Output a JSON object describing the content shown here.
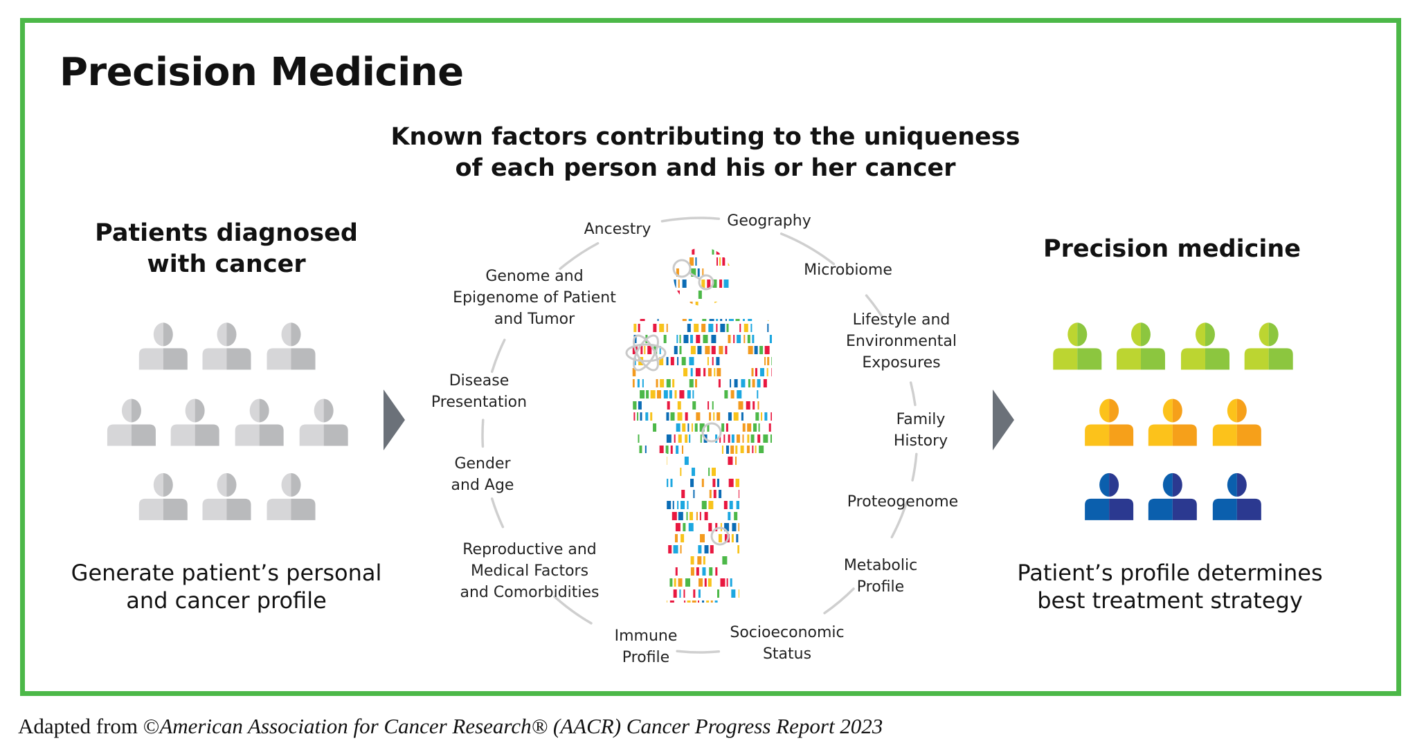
{
  "title": "Precision Medicine",
  "subtitle": [
    "Known factors contributing to the uniqueness",
    "of each person and his or her cancer"
  ],
  "left": {
    "heading": [
      "Patients diagnosed",
      "with cancer"
    ],
    "caption": [
      "Generate patient’s personal",
      "and cancer profile"
    ],
    "icon_colors": {
      "light": "#d6d6d8",
      "dark": "#b9babc"
    }
  },
  "right": {
    "heading": "Precision medicine",
    "caption": [
      "Patient’s profile determines",
      "best treatment strategy"
    ],
    "groups": [
      {
        "light": "#bcd531",
        "dark": "#8cc63f"
      },
      {
        "light": "#fcc21b",
        "dark": "#f6a01a"
      },
      {
        "light": "#0b5fad",
        "dark": "#2b3990"
      }
    ]
  },
  "arrow_color": "#6b7179",
  "frame_color": "#4cb848",
  "factors": {
    "ancestry": "Ancestry",
    "geography": "Geography",
    "microbiome": "Microbiome",
    "lifestyle": [
      "Lifestyle and",
      "Environmental",
      "Exposures"
    ],
    "family": [
      "Family",
      "History"
    ],
    "proteogenome": "Proteogenome",
    "metabolic": [
      "Metabolic",
      "Profile"
    ],
    "socioeconomic": [
      "Socioeconomic",
      "Status"
    ],
    "immune": [
      "Immune",
      "Profile"
    ],
    "reproductive": [
      "Reproductive and",
      "Medical Factors",
      "and Comorbidities"
    ],
    "gender": [
      "Gender",
      "and Age"
    ],
    "disease": [
      "Disease",
      "Presentation"
    ],
    "genome": [
      "Genome and",
      "Epigenome of Patient",
      "and Tumor"
    ]
  },
  "figure_bar_colors": [
    "#e8173f",
    "#0b6cb5",
    "#f8c31b",
    "#4cb848",
    "#1ca7e0",
    "#f39a1e"
  ],
  "footer": {
    "prefix": "Adapted from ©",
    "source": "American Association for Cancer Research® (AACR) Cancer Progress Report 2023"
  }
}
